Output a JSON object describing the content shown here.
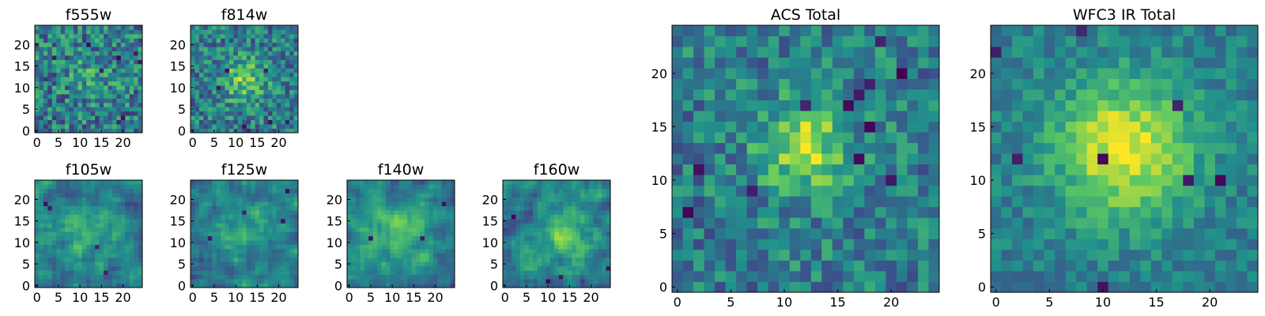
{
  "colors": {
    "viridis_stops": [
      "#440154",
      "#3b528b",
      "#21918c",
      "#5ec962",
      "#fde725"
    ],
    "frame": "#000000"
  },
  "chart_data": [
    {
      "type": "heatmap",
      "title": "f555w",
      "grid_size": 25,
      "xlim": [
        0,
        24
      ],
      "ylim": [
        0,
        24
      ],
      "x_ticks": [
        0,
        5,
        10,
        15,
        20
      ],
      "y_ticks": [
        0,
        5,
        10,
        15,
        20
      ],
      "grid": false,
      "colormap": "viridis",
      "seed": 11,
      "noise": 0.95,
      "peak": {
        "x": 13,
        "y": 13,
        "sigma": 3.5,
        "amp": 0.15
      },
      "hot_pixels": 8,
      "smooth": 0
    },
    {
      "type": "heatmap",
      "title": "f814w",
      "grid_size": 25,
      "xlim": [
        0,
        24
      ],
      "ylim": [
        0,
        24
      ],
      "x_ticks": [
        0,
        5,
        10,
        15,
        20
      ],
      "y_ticks": [
        0,
        5,
        10,
        15,
        20
      ],
      "grid": false,
      "colormap": "viridis",
      "seed": 23,
      "noise": 0.85,
      "peak": {
        "x": 12,
        "y": 12,
        "sigma": 3.5,
        "amp": 0.35
      },
      "hot_pixels": 7,
      "smooth": 0
    },
    {
      "type": "heatmap",
      "title": "f105w",
      "grid_size": 25,
      "xlim": [
        0,
        24
      ],
      "ylim": [
        0,
        24
      ],
      "x_ticks": [
        0,
        5,
        10,
        15,
        20
      ],
      "y_ticks": [
        0,
        5,
        10,
        15,
        20
      ],
      "grid": false,
      "colormap": "viridis",
      "seed": 37,
      "noise": 0.8,
      "peak": {
        "x": 12,
        "y": 12,
        "sigma": 5,
        "amp": 0.2
      },
      "hot_pixels": 4,
      "smooth": 1
    },
    {
      "type": "heatmap",
      "title": "f125w",
      "grid_size": 25,
      "xlim": [
        0,
        24
      ],
      "ylim": [
        0,
        24
      ],
      "x_ticks": [
        0,
        5,
        10,
        15,
        20
      ],
      "y_ticks": [
        0,
        5,
        10,
        15,
        20
      ],
      "grid": false,
      "colormap": "viridis",
      "seed": 41,
      "noise": 0.8,
      "peak": {
        "x": 12,
        "y": 13,
        "sigma": 5,
        "amp": 0.2
      },
      "hot_pixels": 4,
      "smooth": 1
    },
    {
      "type": "heatmap",
      "title": "f140w",
      "grid_size": 25,
      "xlim": [
        0,
        24
      ],
      "ylim": [
        0,
        24
      ],
      "x_ticks": [
        0,
        5,
        10,
        15,
        20
      ],
      "y_ticks": [
        0,
        5,
        10,
        15,
        20
      ],
      "grid": false,
      "colormap": "viridis",
      "seed": 53,
      "noise": 0.8,
      "peak": {
        "x": 12,
        "y": 13,
        "sigma": 5,
        "amp": 0.25
      },
      "hot_pixels": 3,
      "smooth": 1
    },
    {
      "type": "heatmap",
      "title": "f160w",
      "grid_size": 25,
      "xlim": [
        0,
        24
      ],
      "ylim": [
        0,
        24
      ],
      "x_ticks": [
        0,
        5,
        10,
        15,
        20
      ],
      "y_ticks": [
        0,
        5,
        10,
        15,
        20
      ],
      "grid": false,
      "colormap": "viridis",
      "seed": 67,
      "noise": 0.85,
      "peak": {
        "x": 14,
        "y": 12,
        "sigma": 4,
        "amp": 0.3
      },
      "hot_pixels": 4,
      "smooth": 1
    },
    {
      "type": "heatmap",
      "title": "ACS Total",
      "grid_size": 25,
      "xlim": [
        0,
        24
      ],
      "ylim": [
        0,
        24
      ],
      "x_ticks": [
        0,
        5,
        10,
        15,
        20
      ],
      "y_ticks": [
        0,
        5,
        10,
        15,
        20
      ],
      "grid": false,
      "colormap": "viridis",
      "seed": 79,
      "noise": 0.75,
      "peak": {
        "x": 12,
        "y": 13,
        "sigma": 3,
        "amp": 0.45
      },
      "hot_pixels": 12,
      "smooth": 0
    },
    {
      "type": "heatmap",
      "title": "WFC3 IR Total",
      "grid_size": 25,
      "xlim": [
        0,
        24
      ],
      "ylim": [
        0,
        24
      ],
      "x_ticks": [
        0,
        5,
        10,
        15,
        20
      ],
      "y_ticks": [
        0,
        5,
        10,
        15,
        20
      ],
      "grid": false,
      "colormap": "viridis",
      "seed": 97,
      "noise": 0.45,
      "peak": {
        "x": 12,
        "y": 13,
        "sigma": 4.5,
        "amp": 0.55
      },
      "hot_pixels": 8,
      "smooth": 0
    }
  ]
}
